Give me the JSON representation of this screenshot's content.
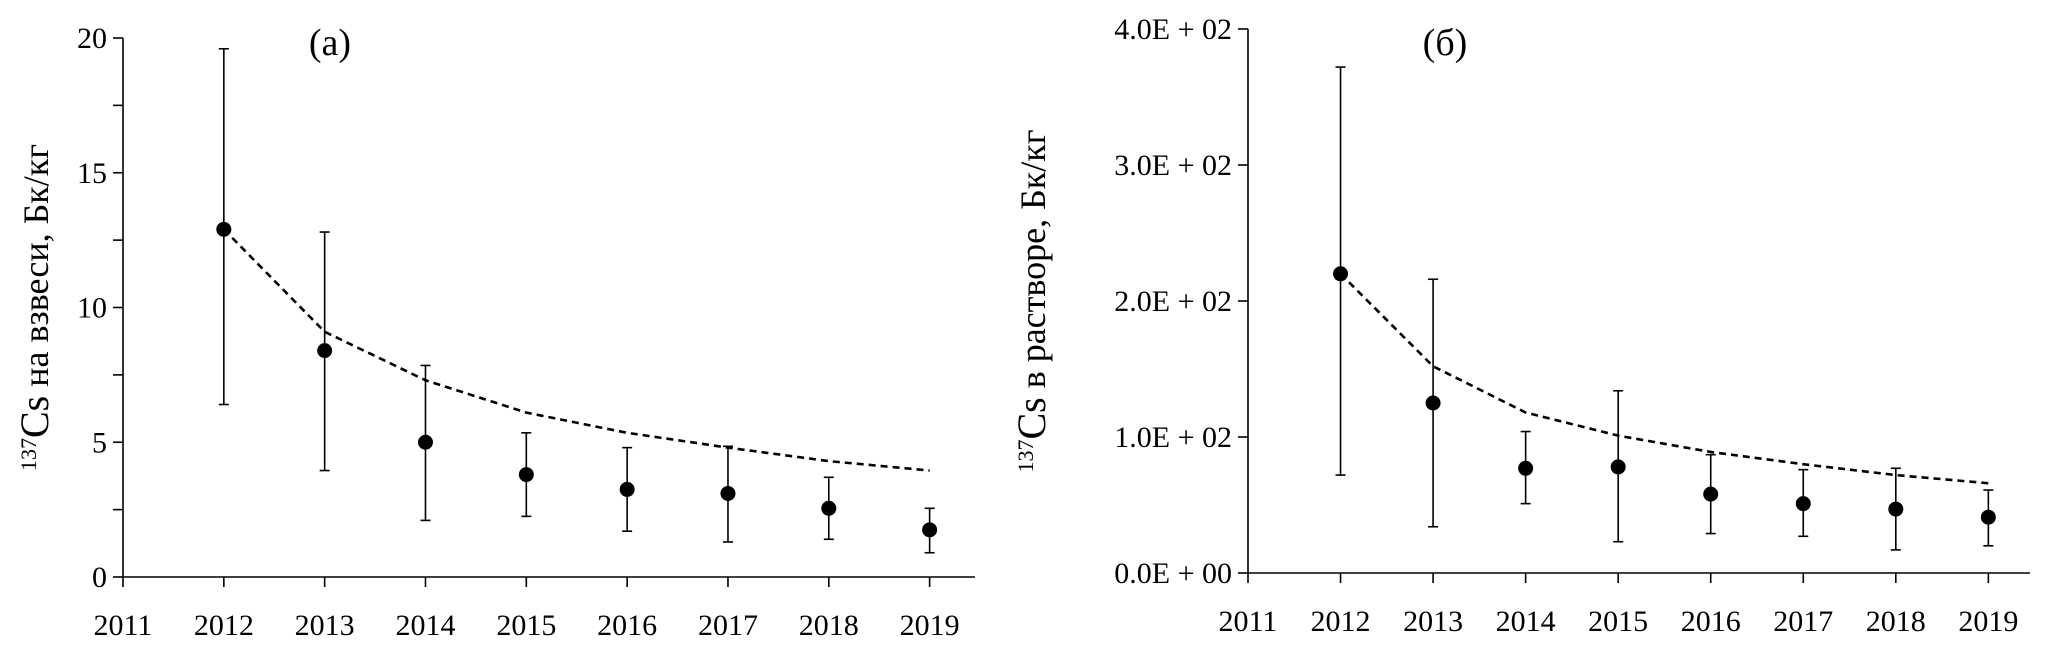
{
  "chart_data": [
    {
      "type": "scatter",
      "panel_label": "(а)",
      "ylabel": {
        "superscript": "137",
        "element": "Cs",
        "text": " на взвеси, Бк/кг"
      },
      "x_ticks": [
        "2011",
        "2012",
        "2013",
        "2014",
        "2015",
        "2016",
        "2017",
        "2018",
        "2019"
      ],
      "y_ticks": [
        "0",
        "5",
        "10",
        "15",
        "20"
      ],
      "xlim": [
        2011,
        2019.45
      ],
      "ylim": [
        0,
        20
      ],
      "y_tick_values": [
        0,
        5,
        10,
        15,
        20
      ],
      "y_minor_tick_values": [
        2.5,
        7.5,
        12.5,
        17.5
      ],
      "grid": false,
      "legend": "none",
      "series": [
        {
          "marker": "filled-circle",
          "x": [
            2012,
            2013,
            2014,
            2015,
            2016,
            2017,
            2018,
            2019
          ],
          "y": [
            12.9,
            8.4,
            5.0,
            3.8,
            3.25,
            3.1,
            2.55,
            1.75
          ],
          "err_low": [
            6.4,
            3.95,
            2.1,
            2.25,
            1.7,
            1.3,
            1.4,
            0.9
          ],
          "err_high": [
            19.6,
            12.8,
            7.85,
            5.35,
            4.8,
            4.85,
            3.7,
            2.55
          ]
        },
        {
          "line": "dashed",
          "x": [
            2012,
            2013,
            2014,
            2015,
            2016,
            2017,
            2018,
            2019
          ],
          "y": [
            12.9,
            9.1,
            7.3,
            6.1,
            5.35,
            4.8,
            4.3,
            3.95
          ]
        }
      ]
    },
    {
      "type": "scatter",
      "panel_label": "(б)",
      "ylabel": {
        "superscript": "137",
        "element": "Cs",
        "text": " в растворе, Бк/кг"
      },
      "x_ticks": [
        "2011",
        "2012",
        "2013",
        "2014",
        "2015",
        "2016",
        "2017",
        "2018",
        "2019"
      ],
      "y_ticks": [
        "0.0E + 00",
        "1.0E + 02",
        "2.0E + 02",
        "3.0E + 02",
        "4.0E + 02"
      ],
      "xlim": [
        2011,
        2019.45
      ],
      "ylim": [
        0,
        400
      ],
      "y_tick_values": [
        0,
        100,
        200,
        300,
        400
      ],
      "y_minor_tick_values": [],
      "grid": false,
      "legend": "none",
      "series": [
        {
          "marker": "filled-circle",
          "x": [
            2012,
            2013,
            2014,
            2015,
            2016,
            2017,
            2018,
            2019
          ],
          "y": [
            220,
            125,
            77,
            78,
            58,
            51,
            47,
            41
          ],
          "err_low": [
            72,
            34,
            51,
            23,
            29,
            27,
            17,
            20
          ],
          "err_high": [
            372,
            216,
            104,
            134,
            87,
            76,
            77,
            61
          ]
        },
        {
          "line": "dashed",
          "x": [
            2012,
            2013,
            2014,
            2015,
            2016,
            2017,
            2018,
            2019
          ],
          "y": [
            220,
            152,
            118,
            101,
            89,
            80,
            72,
            66
          ]
        }
      ]
    }
  ]
}
